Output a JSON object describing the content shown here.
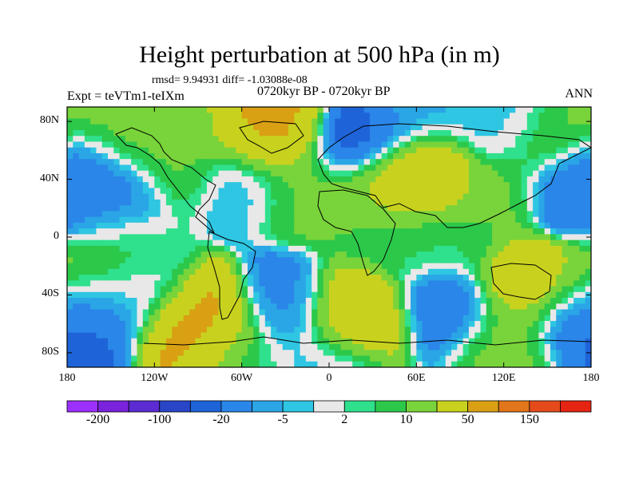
{
  "header": {
    "title": "Height perturbation at 500 hPa (in m)",
    "stats_line": "rmsd= 9.94931  diff= -1.03088e-08",
    "experiment": "Expt = teVTm1-teIXm",
    "period": "0720kyr BP - 0720kyr BP",
    "season": "ANN"
  },
  "chart_data": {
    "type": "heatmap",
    "title": "Height perturbation at 500 hPa (in m)",
    "projection": "cylindrical equidistant",
    "x_range": [
      -180,
      180
    ],
    "y_range": [
      -90,
      90
    ],
    "x_ticks": [
      {
        "value": -180,
        "label": "180"
      },
      {
        "value": -120,
        "label": "120W"
      },
      {
        "value": -60,
        "label": "60W"
      },
      {
        "value": 0,
        "label": "0"
      },
      {
        "value": 60,
        "label": "60E"
      },
      {
        "value": 120,
        "label": "120E"
      },
      {
        "value": 180,
        "label": "180"
      }
    ],
    "y_ticks": [
      {
        "value": 80,
        "label": "80N"
      },
      {
        "value": 40,
        "label": "40N"
      },
      {
        "value": 0,
        "label": "0"
      },
      {
        "value": -40,
        "label": "40S"
      },
      {
        "value": -80,
        "label": "80S"
      }
    ],
    "levels": [
      -200,
      -150,
      -100,
      -50,
      -20,
      -10,
      -5,
      -2,
      2,
      5,
      10,
      20,
      50,
      100,
      150,
      200
    ],
    "colors": [
      "#9b30ff",
      "#7a22dc",
      "#5c2bd1",
      "#2846c7",
      "#1e64d8",
      "#2a86e8",
      "#2aa5e6",
      "#2ec6e2",
      "#e8e8e8",
      "#2fe08c",
      "#2cc84a",
      "#78d43a",
      "#c8d21e",
      "#d9a014",
      "#e2761a",
      "#e54b1a",
      "#e52412"
    ],
    "colorbar_labels": [
      {
        "index": 1,
        "label": "-200"
      },
      {
        "index": 3,
        "label": "-100"
      },
      {
        "index": 5,
        "label": "-20"
      },
      {
        "index": 7,
        "label": "-5"
      },
      {
        "index": 9,
        "label": "2"
      },
      {
        "index": 11,
        "label": "10"
      },
      {
        "index": 13,
        "label": "50"
      },
      {
        "index": 15,
        "label": "150"
      }
    ],
    "features": [
      {
        "lon": -150,
        "lat": 35,
        "value": -25
      },
      {
        "lon": -180,
        "lat": 35,
        "value": -22
      },
      {
        "lon": 180,
        "lat": 35,
        "value": -22
      },
      {
        "lon": -60,
        "lat": 40,
        "value": -8
      },
      {
        "lon": 20,
        "lat": 65,
        "value": -35
      },
      {
        "lon": 55,
        "lat": 80,
        "value": -6
      },
      {
        "lon": 120,
        "lat": 75,
        "value": -5
      },
      {
        "lon": 155,
        "lat": 65,
        "value": 14
      },
      {
        "lon": -140,
        "lat": 60,
        "value": 14
      },
      {
        "lon": -100,
        "lat": 72,
        "value": 14
      },
      {
        "lon": -40,
        "lat": 72,
        "value": 60
      },
      {
        "lon": -105,
        "lat": 48,
        "value": 12
      },
      {
        "lon": -20,
        "lat": 35,
        "value": 12
      },
      {
        "lon": 30,
        "lat": 35,
        "value": 20
      },
      {
        "lon": 60,
        "lat": 42,
        "value": 55
      },
      {
        "lon": 110,
        "lat": 30,
        "value": 12
      },
      {
        "lon": -150,
        "lat": 10,
        "value": 4
      },
      {
        "lon": 45,
        "lat": 2,
        "value": 6
      },
      {
        "lon": 80,
        "lat": -5,
        "value": 5
      },
      {
        "lon": 140,
        "lat": -35,
        "value": 40
      },
      {
        "lon": 120,
        "lat": -70,
        "value": 14
      },
      {
        "lon": 20,
        "lat": -55,
        "value": 45
      },
      {
        "lon": -90,
        "lat": -60,
        "value": 70
      },
      {
        "lon": -165,
        "lat": -55,
        "value": -25
      },
      {
        "lon": 170,
        "lat": -55,
        "value": -22
      },
      {
        "lon": -130,
        "lat": -40,
        "value": -12
      },
      {
        "lon": -30,
        "lat": -50,
        "value": -15
      },
      {
        "lon": 80,
        "lat": -50,
        "value": -22
      },
      {
        "lon": -140,
        "lat": -30,
        "value": 12
      },
      {
        "lon": -175,
        "lat": -32,
        "value": 14
      },
      {
        "lon": -60,
        "lat": -78,
        "value": 5
      },
      {
        "lon": 0,
        "lat": -85,
        "value": -4
      }
    ]
  }
}
